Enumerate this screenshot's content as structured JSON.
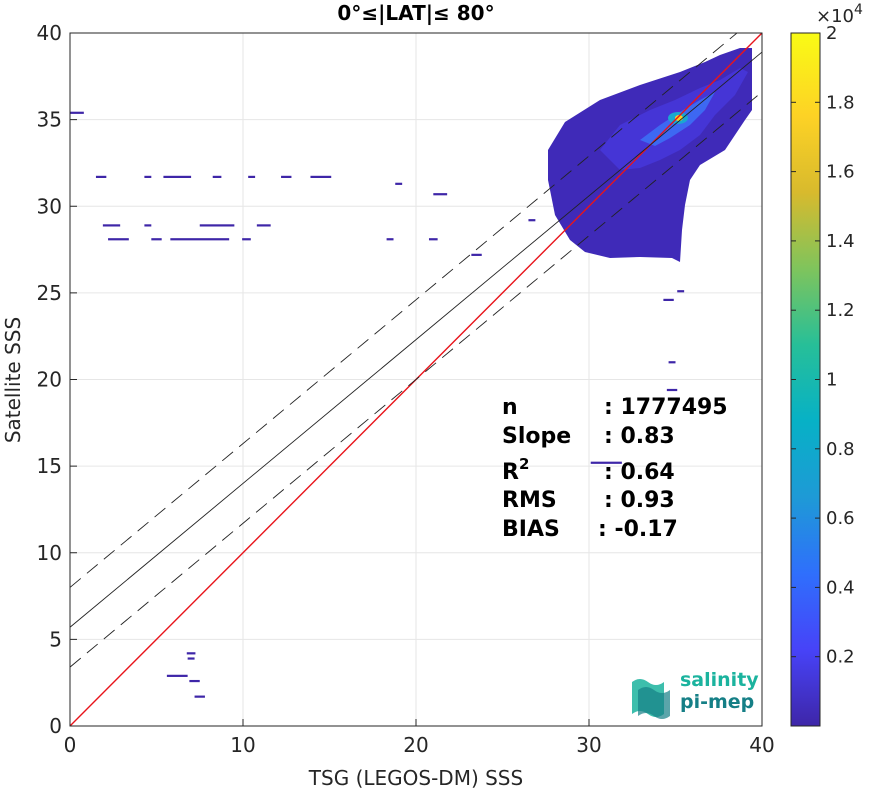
{
  "chart_data": {
    "type": "scatter",
    "title": "0°≤|LAT|≤ 80°",
    "xlabel": "TSG (LEGOS-DM) SSS",
    "ylabel": "Satellite SSS",
    "xlim": [
      0,
      40
    ],
    "ylim": [
      0,
      40
    ],
    "xticks": [
      "0",
      "10",
      "20",
      "30",
      "40"
    ],
    "yticks": [
      "0",
      "5",
      "10",
      "15",
      "20",
      "25",
      "30",
      "35",
      "40"
    ],
    "grid": true,
    "lines": [
      {
        "name": "identity",
        "color": "#e8141b",
        "style": "solid",
        "x": [
          0,
          40
        ],
        "y": [
          0,
          40
        ]
      },
      {
        "name": "regression",
        "color": "#222222",
        "style": "solid",
        "x": [
          0,
          40
        ],
        "y": [
          5.7,
          38.9
        ]
      },
      {
        "name": "regression+",
        "color": "#222222",
        "style": "dashed",
        "x": [
          0,
          40
        ],
        "y": [
          8.0,
          41.2
        ]
      },
      {
        "name": "regression-",
        "color": "#222222",
        "style": "dashed",
        "x": [
          0,
          40
        ],
        "y": [
          3.4,
          36.6
        ]
      }
    ],
    "density_points": [
      {
        "x": 0.4,
        "y": 35.4,
        "w": 0.8
      },
      {
        "x": 1.8,
        "y": 31.7,
        "w": 0.6
      },
      {
        "x": 4.5,
        "y": 31.7,
        "w": 0.4
      },
      {
        "x": 6.2,
        "y": 31.7,
        "w": 1.6
      },
      {
        "x": 8.5,
        "y": 31.7,
        "w": 0.5
      },
      {
        "x": 10.5,
        "y": 31.7,
        "w": 0.4
      },
      {
        "x": 12.5,
        "y": 31.7,
        "w": 0.6
      },
      {
        "x": 14.5,
        "y": 31.7,
        "w": 1.2
      },
      {
        "x": 2.4,
        "y": 28.9,
        "w": 1.0
      },
      {
        "x": 4.5,
        "y": 28.9,
        "w": 0.4
      },
      {
        "x": 8.5,
        "y": 28.9,
        "w": 2.0
      },
      {
        "x": 11.2,
        "y": 28.9,
        "w": 0.8
      },
      {
        "x": 2.8,
        "y": 28.1,
        "w": 1.2
      },
      {
        "x": 5.0,
        "y": 28.1,
        "w": 0.6
      },
      {
        "x": 7.5,
        "y": 28.1,
        "w": 3.4
      },
      {
        "x": 10.2,
        "y": 28.1,
        "w": 0.5
      },
      {
        "x": 18.5,
        "y": 28.1,
        "w": 0.4
      },
      {
        "x": 21.0,
        "y": 28.1,
        "w": 0.5
      },
      {
        "x": 21.4,
        "y": 30.7,
        "w": 0.8
      },
      {
        "x": 19.0,
        "y": 31.3,
        "w": 0.4
      },
      {
        "x": 26.7,
        "y": 29.2,
        "w": 0.4
      },
      {
        "x": 23.5,
        "y": 27.2,
        "w": 0.6
      },
      {
        "x": 35.3,
        "y": 25.1,
        "w": 0.4
      },
      {
        "x": 34.6,
        "y": 24.6,
        "w": 0.6
      },
      {
        "x": 34.8,
        "y": 21.0,
        "w": 0.4
      },
      {
        "x": 34.8,
        "y": 19.4,
        "w": 0.6
      },
      {
        "x": 31.0,
        "y": 15.2,
        "w": 1.8
      },
      {
        "x": 6.2,
        "y": 2.9,
        "w": 1.2
      },
      {
        "x": 7.2,
        "y": 2.6,
        "w": 0.6
      },
      {
        "x": 7.5,
        "y": 1.7,
        "w": 0.6
      },
      {
        "x": 7.0,
        "y": 4.2,
        "w": 0.5
      },
      {
        "x": 7.0,
        "y": 3.9,
        "w": 0.4
      }
    ],
    "colorbar": {
      "min": 0,
      "max": 20000,
      "exponent_label": "×10",
      "exponent_value": "4",
      "ticks": [
        "0.2",
        "0.4",
        "0.6",
        "0.8",
        "1",
        "1.2",
        "1.4",
        "1.6",
        "1.8",
        "2"
      ],
      "tick_values": [
        0.2,
        0.4,
        0.6,
        0.8,
        1.0,
        1.2,
        1.4,
        1.6,
        1.8,
        2.0
      ],
      "colormap": [
        "#3e26a8",
        "#4743f8",
        "#2f6ffc",
        "#1e9ad6",
        "#07b1c6",
        "#27bf98",
        "#7fc45c",
        "#d8ba2d",
        "#fdd225",
        "#f9fb15"
      ]
    },
    "stats": [
      {
        "label": "n",
        "value": ": 1777495"
      },
      {
        "label": "Slope",
        "value": ": 0.83"
      },
      {
        "label": "R",
        "sup": "2",
        "value": ": 0.64"
      },
      {
        "label": "RMS",
        "value": ": 0.93"
      },
      {
        "label": "BIAS",
        "value": ": -0.17"
      }
    ]
  },
  "logo": {
    "line1": "salinity",
    "line2": "pi-mep",
    "color1": "#1bb39e",
    "color2": "#157f86"
  }
}
